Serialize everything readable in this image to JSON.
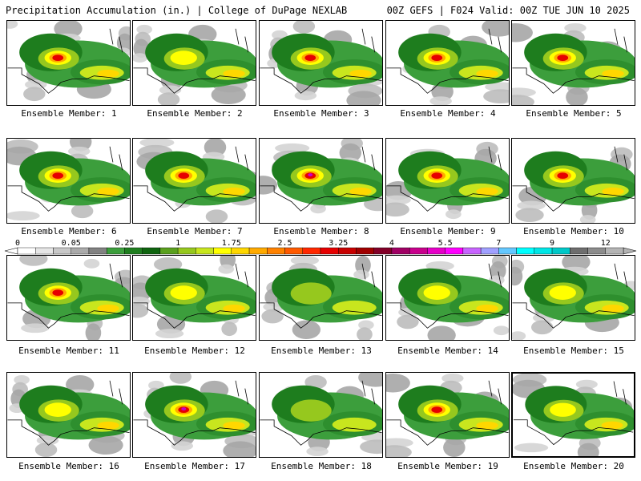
{
  "header": {
    "left": "Precipitation Accumulation (in.) | College of DuPage NEXLAB",
    "right": "00Z GEFS | F024 Valid: 00Z TUE JUN 10 2025"
  },
  "colorbar": {
    "labels": [
      "0",
      "0.05",
      "0.25",
      "1",
      "1.75",
      "2.5",
      "3.25",
      "4",
      "5.5",
      "7",
      "9",
      "12"
    ],
    "colors": [
      "#ffffff",
      "#e6e6e6",
      "#c8c8c8",
      "#aaaaaa",
      "#828282",
      "#3c9e3c",
      "#1e7d1e",
      "#0f640f",
      "#5aa01e",
      "#96c81e",
      "#c8e61e",
      "#ffff00",
      "#ffd700",
      "#ffaa00",
      "#ff8200",
      "#ff5a00",
      "#ff2800",
      "#e60000",
      "#c80000",
      "#a00000",
      "#820028",
      "#a00064",
      "#c8008c",
      "#e600c8",
      "#ff00ff",
      "#c864ff",
      "#a0a0ff",
      "#64c8ff",
      "#00ffff",
      "#00e6e6",
      "#00c8c8",
      "#6e6e6e",
      "#8c8c8c",
      "#b4b4b4"
    ]
  },
  "members": [
    {
      "caption": "Ensemble Member: 1",
      "intensity": 3,
      "selected": false
    },
    {
      "caption": "Ensemble Member: 2",
      "intensity": 2,
      "selected": false
    },
    {
      "caption": "Ensemble Member: 3",
      "intensity": 3,
      "selected": false
    },
    {
      "caption": "Ensemble Member: 4",
      "intensity": 3,
      "selected": false
    },
    {
      "caption": "Ensemble Member: 5",
      "intensity": 3,
      "selected": false
    },
    {
      "caption": "Ensemble Member: 6",
      "intensity": 3,
      "selected": false
    },
    {
      "caption": "Ensemble Member: 7",
      "intensity": 3,
      "selected": false
    },
    {
      "caption": "Ensemble Member: 8",
      "intensity": 4,
      "selected": false
    },
    {
      "caption": "Ensemble Member: 9",
      "intensity": 3,
      "selected": false
    },
    {
      "caption": "Ensemble Member: 10",
      "intensity": 3,
      "selected": false
    },
    {
      "caption": "Ensemble Member: 11",
      "intensity": 3,
      "selected": false
    },
    {
      "caption": "Ensemble Member: 12",
      "intensity": 2,
      "selected": false
    },
    {
      "caption": "Ensemble Member: 13",
      "intensity": 1,
      "selected": false
    },
    {
      "caption": "Ensemble Member: 14",
      "intensity": 2,
      "selected": false
    },
    {
      "caption": "Ensemble Member: 15",
      "intensity": 2,
      "selected": false
    },
    {
      "caption": "Ensemble Member: 16",
      "intensity": 2,
      "selected": false
    },
    {
      "caption": "Ensemble Member: 17",
      "intensity": 4,
      "selected": false
    },
    {
      "caption": "Ensemble Member: 18",
      "intensity": 1,
      "selected": false
    },
    {
      "caption": "Ensemble Member: 19",
      "intensity": 3,
      "selected": false
    },
    {
      "caption": "Ensemble Member: 20",
      "intensity": 2,
      "selected": true
    }
  ]
}
